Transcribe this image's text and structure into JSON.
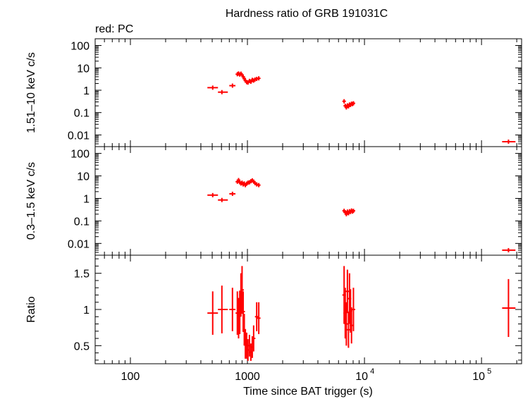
{
  "chart_data": {
    "type": "scatter",
    "title": "Hardness ratio of GRB 191031C",
    "subtitle": "red: PC",
    "xlabel": "Time since BAT trigger (s)",
    "x_scale": "log",
    "xlim": [
      50,
      220000
    ],
    "x_ticks": [
      {
        "value": 100,
        "label": "100"
      },
      {
        "value": 1000,
        "label": "1000"
      },
      {
        "value": 10000,
        "base": "10",
        "exp": "4"
      },
      {
        "value": 100000,
        "base": "10",
        "exp": "5"
      }
    ],
    "series_color": "#ff0000",
    "panels": [
      {
        "name": "hard",
        "ylabel": "1.51–10 keV c/s",
        "y_scale": "log",
        "ylim": [
          0.003,
          200
        ],
        "y_ticks": [
          {
            "value": 100,
            "label": "100"
          },
          {
            "value": 10,
            "label": "10"
          },
          {
            "value": 1,
            "label": "1"
          },
          {
            "value": 0.1,
            "label": "0.1"
          },
          {
            "value": 0.01,
            "label": "0.01"
          }
        ],
        "points": [
          {
            "x": 505,
            "x0": 455,
            "x1": 560,
            "y": 1.3
          },
          {
            "x": 605,
            "x0": 560,
            "x1": 680,
            "y": 0.82
          },
          {
            "x": 745,
            "x0": 700,
            "x1": 790,
            "y": 1.6
          },
          {
            "x": 820,
            "y": 5.2
          },
          {
            "x": 840,
            "y": 5.6
          },
          {
            "x": 860,
            "y": 5.0
          },
          {
            "x": 880,
            "y": 5.5
          },
          {
            "x": 900,
            "y": 4.8
          },
          {
            "x": 920,
            "y": 4.0
          },
          {
            "x": 940,
            "y": 3.3
          },
          {
            "x": 960,
            "y": 2.7
          },
          {
            "x": 985,
            "y": 2.3
          },
          {
            "x": 1010,
            "y": 2.2
          },
          {
            "x": 1040,
            "y": 2.6
          },
          {
            "x": 1070,
            "y": 2.4
          },
          {
            "x": 1100,
            "y": 2.9
          },
          {
            "x": 1130,
            "y": 2.7
          },
          {
            "x": 1160,
            "y": 3.0
          },
          {
            "x": 1200,
            "y": 3.2
          },
          {
            "x": 1250,
            "y": 3.4
          },
          {
            "x": 6700,
            "y": 0.32
          },
          {
            "x": 6850,
            "y": 0.2
          },
          {
            "x": 7000,
            "y": 0.17
          },
          {
            "x": 7150,
            "y": 0.21
          },
          {
            "x": 7300,
            "y": 0.19
          },
          {
            "x": 7450,
            "y": 0.23
          },
          {
            "x": 7600,
            "y": 0.22
          },
          {
            "x": 7750,
            "y": 0.25
          },
          {
            "x": 7900,
            "y": 0.24
          },
          {
            "x": 8050,
            "y": 0.26
          },
          {
            "x": 170000,
            "x0": 150000,
            "x1": 195000,
            "y": 0.005
          }
        ]
      },
      {
        "name": "soft",
        "ylabel": "0.3–1.5 keV c/s",
        "y_scale": "log",
        "ylim": [
          0.003,
          200
        ],
        "y_ticks": [
          {
            "value": 100,
            "label": "100"
          },
          {
            "value": 10,
            "label": "10"
          },
          {
            "value": 1,
            "label": "1"
          },
          {
            "value": 0.1,
            "label": "0.1"
          },
          {
            "value": 0.01,
            "label": "0.01"
          }
        ],
        "points": [
          {
            "x": 505,
            "x0": 455,
            "x1": 560,
            "y": 1.4
          },
          {
            "x": 605,
            "x0": 560,
            "x1": 680,
            "y": 0.85
          },
          {
            "x": 745,
            "x0": 700,
            "x1": 790,
            "y": 1.6
          },
          {
            "x": 820,
            "y": 5.5
          },
          {
            "x": 840,
            "y": 6.5
          },
          {
            "x": 860,
            "y": 5.2
          },
          {
            "x": 880,
            "y": 4.6
          },
          {
            "x": 900,
            "y": 5.0
          },
          {
            "x": 920,
            "y": 4.2
          },
          {
            "x": 940,
            "y": 4.6
          },
          {
            "x": 960,
            "y": 3.9
          },
          {
            "x": 985,
            "y": 4.5
          },
          {
            "x": 1010,
            "y": 5.0
          },
          {
            "x": 1040,
            "y": 5.2
          },
          {
            "x": 1070,
            "y": 5.8
          },
          {
            "x": 1100,
            "y": 6.3
          },
          {
            "x": 1130,
            "y": 5.6
          },
          {
            "x": 1160,
            "y": 4.8
          },
          {
            "x": 1200,
            "y": 4.2
          },
          {
            "x": 1250,
            "y": 3.9
          },
          {
            "x": 6700,
            "y": 0.28
          },
          {
            "x": 6850,
            "y": 0.24
          },
          {
            "x": 7000,
            "y": 0.2
          },
          {
            "x": 7150,
            "y": 0.26
          },
          {
            "x": 7300,
            "y": 0.22
          },
          {
            "x": 7450,
            "y": 0.27
          },
          {
            "x": 7600,
            "y": 0.25
          },
          {
            "x": 7750,
            "y": 0.29
          },
          {
            "x": 7900,
            "y": 0.26
          },
          {
            "x": 8050,
            "y": 0.28
          },
          {
            "x": 170000,
            "x0": 150000,
            "x1": 195000,
            "y": 0.005
          }
        ]
      },
      {
        "name": "ratio",
        "ylabel": "Ratio",
        "y_scale": "linear",
        "ylim": [
          0.25,
          1.75
        ],
        "y_ticks": [
          {
            "value": 1.5,
            "label": "1.5"
          },
          {
            "value": 1,
            "label": "1"
          },
          {
            "value": 0.5,
            "label": "0.5"
          }
        ],
        "points": [
          {
            "x": 505,
            "x0": 455,
            "x1": 560,
            "y": 0.95,
            "e": 0.3
          },
          {
            "x": 605,
            "x0": 560,
            "x1": 680,
            "y": 1.0,
            "e": 0.33
          },
          {
            "x": 745,
            "x0": 700,
            "x1": 790,
            "y": 1.0,
            "e": 0.3
          },
          {
            "x": 820,
            "y": 0.95,
            "e": 0.3
          },
          {
            "x": 840,
            "y": 0.88,
            "e": 0.28
          },
          {
            "x": 860,
            "y": 0.96,
            "e": 0.3
          },
          {
            "x": 880,
            "y": 1.2,
            "e": 0.3
          },
          {
            "x": 900,
            "y": 1.27,
            "e": 0.33
          },
          {
            "x": 920,
            "y": 0.97,
            "e": 0.28
          },
          {
            "x": 940,
            "y": 0.72,
            "e": 0.22
          },
          {
            "x": 960,
            "y": 0.52,
            "e": 0.2
          },
          {
            "x": 985,
            "y": 0.5,
            "e": 0.18
          },
          {
            "x": 1010,
            "y": 0.44,
            "e": 0.15
          },
          {
            "x": 1040,
            "y": 0.5,
            "e": 0.15
          },
          {
            "x": 1070,
            "y": 0.41,
            "e": 0.12
          },
          {
            "x": 1100,
            "y": 0.48,
            "e": 0.15
          },
          {
            "x": 1130,
            "y": 0.6,
            "e": 0.18
          },
          {
            "x": 1200,
            "y": 0.9,
            "e": 0.2
          },
          {
            "x": 1250,
            "y": 0.88,
            "e": 0.22
          },
          {
            "x": 6700,
            "y": 1.2,
            "e": 0.4
          },
          {
            "x": 6850,
            "y": 0.95,
            "e": 0.35
          },
          {
            "x": 7000,
            "y": 0.8,
            "e": 0.3
          },
          {
            "x": 7150,
            "y": 1.25,
            "e": 0.3
          },
          {
            "x": 7300,
            "y": 0.72,
            "e": 0.25
          },
          {
            "x": 7450,
            "y": 1.15,
            "e": 0.35
          },
          {
            "x": 7600,
            "y": 0.98,
            "e": 0.3
          },
          {
            "x": 7750,
            "y": 0.78,
            "e": 0.25
          },
          {
            "x": 8050,
            "y": 1.0,
            "e": 0.3
          },
          {
            "x": 170000,
            "x0": 150000,
            "x1": 195000,
            "y": 1.02,
            "e": 0.4
          }
        ]
      }
    ]
  }
}
